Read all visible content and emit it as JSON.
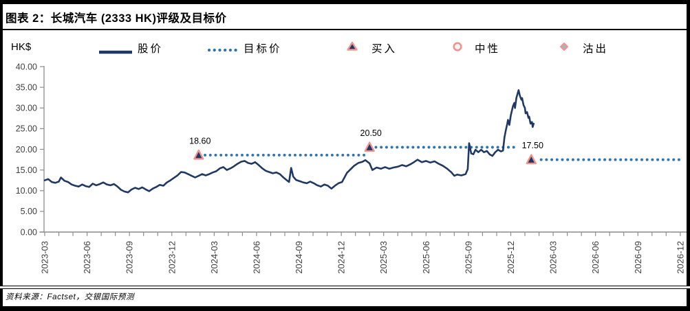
{
  "title": "图表 2：长城汽车 (2333 HK)评级及目标价",
  "unit_label": "HK$",
  "legend": [
    {
      "label": "股价",
      "marker": "solid-line"
    },
    {
      "label": "目标价",
      "marker": "dotted-line"
    },
    {
      "label": "买入",
      "marker": "triangle"
    },
    {
      "label": "中性",
      "marker": "circle"
    },
    {
      "label": "沽出",
      "marker": "diamond"
    }
  ],
  "source": "资料来源：Factset，交银国际预测",
  "colors": {
    "price_line": "#1F3864",
    "target_line": "#2E74B5",
    "marker_outline": "#F2928D",
    "buy_fill": "#1F3864",
    "neutral_fill": "#F3F3F3",
    "sell_fill": "#9DB6C9",
    "axis": "#8C8C8C",
    "tick_text": "#3F3F3F"
  },
  "chart_data": {
    "type": "line",
    "title": "长城汽车 (2333 HK)评级及目标价",
    "xlabel": "",
    "ylabel": "HK$",
    "ylim": [
      0,
      40
    ],
    "ytick_step": 5,
    "yticks": [
      "0.00",
      "5.00",
      "10.00",
      "15.00",
      "20.00",
      "25.00",
      "30.00",
      "35.00",
      "40.00"
    ],
    "xticks": [
      "2023-03",
      "2023-06",
      "2023-09",
      "2023-12",
      "2024-03",
      "2024-06",
      "2024-09",
      "2024-12",
      "2025-03",
      "2025-06",
      "2025-09",
      "2025-12",
      "2026-03",
      "2026-06",
      "2026-09",
      "2026-12"
    ],
    "xtick_months": [
      0,
      3,
      6,
      9,
      12,
      15,
      18,
      21,
      24,
      27,
      30,
      33,
      36,
      39,
      42,
      45
    ],
    "minor_tick_every_months": 1,
    "grid": false,
    "legend_position": "top",
    "x_unit": "months since 2023-03",
    "series": [
      {
        "name": "股价",
        "points": [
          [
            0,
            12.5
          ],
          [
            0.25,
            12.8
          ],
          [
            0.5,
            12.1
          ],
          [
            0.75,
            11.9
          ],
          [
            1,
            12.2
          ],
          [
            1.15,
            13.2
          ],
          [
            1.4,
            12.4
          ],
          [
            1.65,
            12.1
          ],
          [
            1.9,
            11.5
          ],
          [
            2.15,
            11.2
          ],
          [
            2.4,
            11.0
          ],
          [
            2.65,
            11.5
          ],
          [
            2.9,
            11.1
          ],
          [
            3.15,
            10.9
          ],
          [
            3.4,
            11.7
          ],
          [
            3.65,
            11.3
          ],
          [
            3.9,
            11.6
          ],
          [
            4.15,
            12.0
          ],
          [
            4.4,
            11.5
          ],
          [
            4.65,
            11.3
          ],
          [
            4.9,
            11.6
          ],
          [
            5.15,
            11.0
          ],
          [
            5.4,
            10.2
          ],
          [
            5.65,
            9.8
          ],
          [
            5.9,
            9.6
          ],
          [
            6.15,
            10.3
          ],
          [
            6.4,
            10.7
          ],
          [
            6.65,
            10.4
          ],
          [
            6.9,
            10.8
          ],
          [
            7.15,
            10.3
          ],
          [
            7.4,
            9.9
          ],
          [
            7.65,
            10.5
          ],
          [
            7.9,
            10.9
          ],
          [
            8.15,
            11.4
          ],
          [
            8.4,
            11.2
          ],
          [
            8.65,
            12.0
          ],
          [
            8.9,
            12.5
          ],
          [
            9.15,
            13.1
          ],
          [
            9.4,
            13.7
          ],
          [
            9.65,
            14.5
          ],
          [
            9.9,
            14.4
          ],
          [
            10.15,
            14.0
          ],
          [
            10.4,
            13.6
          ],
          [
            10.65,
            13.2
          ],
          [
            10.9,
            13.6
          ],
          [
            11.15,
            14.0
          ],
          [
            11.4,
            13.7
          ],
          [
            11.65,
            14.0
          ],
          [
            11.9,
            14.4
          ],
          [
            12.15,
            14.7
          ],
          [
            12.4,
            15.4
          ],
          [
            12.65,
            15.7
          ],
          [
            12.9,
            15.0
          ],
          [
            13.15,
            15.4
          ],
          [
            13.4,
            15.9
          ],
          [
            13.65,
            16.5
          ],
          [
            13.9,
            17.0
          ],
          [
            14.15,
            17.2
          ],
          [
            14.4,
            16.7
          ],
          [
            14.65,
            16.5
          ],
          [
            14.9,
            16.9
          ],
          [
            15.15,
            16.2
          ],
          [
            15.4,
            15.4
          ],
          [
            15.65,
            14.8
          ],
          [
            15.9,
            14.5
          ],
          [
            16.15,
            14.2
          ],
          [
            16.4,
            14.4
          ],
          [
            16.65,
            14.0
          ],
          [
            16.9,
            13.2
          ],
          [
            17.15,
            12.5
          ],
          [
            17.3,
            12.1
          ],
          [
            17.45,
            15.5
          ],
          [
            17.6,
            13.4
          ],
          [
            17.8,
            12.6
          ],
          [
            18.05,
            12.3
          ],
          [
            18.3,
            12.0
          ],
          [
            18.55,
            11.8
          ],
          [
            18.8,
            12.2
          ],
          [
            19.05,
            11.8
          ],
          [
            19.3,
            11.3
          ],
          [
            19.55,
            11.0
          ],
          [
            19.8,
            11.5
          ],
          [
            20.05,
            11.2
          ],
          [
            20.3,
            10.5
          ],
          [
            20.55,
            11.2
          ],
          [
            20.8,
            11.8
          ],
          [
            21.05,
            12.1
          ],
          [
            21.4,
            14.3
          ],
          [
            21.9,
            16.0
          ],
          [
            22.2,
            16.7
          ],
          [
            22.5,
            17.0
          ],
          [
            22.7,
            17.4
          ],
          [
            23.0,
            16.6
          ],
          [
            23.2,
            15.0
          ],
          [
            23.5,
            15.6
          ],
          [
            23.8,
            15.3
          ],
          [
            24.1,
            15.7
          ],
          [
            24.4,
            15.3
          ],
          [
            24.7,
            15.6
          ],
          [
            25.0,
            15.8
          ],
          [
            25.3,
            16.2
          ],
          [
            25.6,
            15.9
          ],
          [
            25.9,
            16.4
          ],
          [
            26.1,
            16.8
          ],
          [
            26.4,
            17.5
          ],
          [
            26.7,
            16.9
          ],
          [
            27.0,
            17.2
          ],
          [
            27.3,
            16.8
          ],
          [
            27.6,
            17.1
          ],
          [
            27.9,
            16.5
          ],
          [
            28.2,
            16.0
          ],
          [
            28.5,
            15.3
          ],
          [
            28.8,
            14.4
          ],
          [
            29.0,
            13.6
          ],
          [
            29.2,
            13.9
          ],
          [
            29.5,
            13.7
          ],
          [
            29.8,
            14.0
          ],
          [
            29.95,
            15.2
          ],
          [
            30.05,
            21.5
          ],
          [
            30.2,
            19.0
          ],
          [
            30.35,
            18.8
          ],
          [
            30.5,
            19.9
          ],
          [
            30.7,
            19.3
          ],
          [
            30.9,
            19.9
          ],
          [
            31.1,
            19.3
          ],
          [
            31.3,
            19.6
          ],
          [
            31.5,
            18.8
          ],
          [
            31.7,
            18.4
          ],
          [
            31.9,
            19.3
          ],
          [
            32.1,
            19.9
          ],
          [
            32.3,
            19.5
          ],
          [
            32.45,
            19.7
          ],
          [
            32.55,
            22.9
          ],
          [
            32.65,
            24.6
          ],
          [
            32.75,
            26.2
          ],
          [
            32.8,
            27.1
          ],
          [
            32.9,
            25.9
          ],
          [
            33.0,
            28.2
          ],
          [
            33.15,
            30.4
          ],
          [
            33.25,
            31.2
          ],
          [
            33.3,
            30.0
          ],
          [
            33.4,
            32.5
          ],
          [
            33.5,
            33.7
          ],
          [
            33.55,
            34.3
          ],
          [
            33.65,
            32.9
          ],
          [
            33.75,
            32.0
          ],
          [
            33.8,
            32.4
          ],
          [
            33.9,
            30.7
          ],
          [
            34.0,
            30.0
          ],
          [
            34.05,
            28.7
          ],
          [
            34.15,
            29.0
          ],
          [
            34.25,
            27.6
          ],
          [
            34.3,
            27.9
          ],
          [
            34.4,
            26.2
          ],
          [
            34.5,
            26.6
          ],
          [
            34.55,
            25.4
          ],
          [
            34.62,
            26.2
          ]
        ]
      }
    ],
    "target_price_segments": [
      {
        "value": 18.6,
        "month_start": 11.35,
        "month_end": 22.9
      },
      {
        "value": 20.5,
        "month_start": 23.45,
        "month_end": 33.5
      },
      {
        "value": 17.5,
        "month_start": 35.15,
        "month_end": 45.2
      }
    ],
    "ratings": [
      {
        "label": "18.60",
        "target_price": 18.6,
        "month": 10.9,
        "rating": "买入"
      },
      {
        "label": "20.50",
        "target_price": 20.5,
        "month": 23.0,
        "rating": "买入"
      },
      {
        "label": "17.50",
        "target_price": 17.5,
        "month": 34.45,
        "rating": "买入"
      }
    ]
  }
}
